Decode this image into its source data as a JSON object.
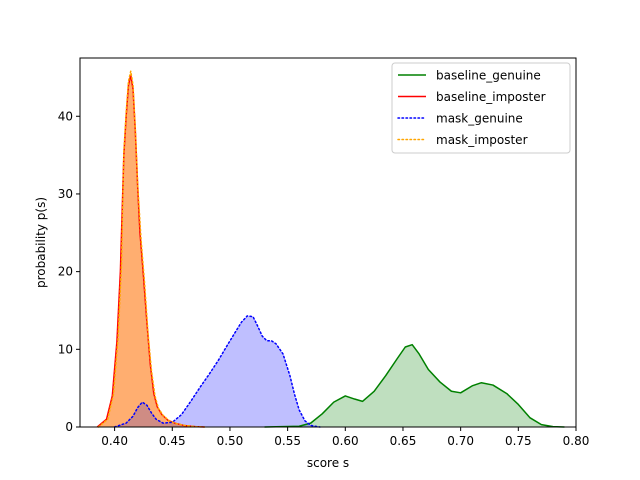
{
  "chart_data": {
    "type": "area",
    "xlabel": "score s",
    "ylabel": "probability p(s)",
    "xlim": [
      0.37,
      0.8
    ],
    "ylim": [
      0,
      47.5
    ],
    "x_ticks": [
      0.4,
      0.45,
      0.5,
      0.55,
      0.6,
      0.65,
      0.7,
      0.75,
      0.8
    ],
    "x_tick_labels": [
      "0.40",
      "0.45",
      "0.50",
      "0.55",
      "0.60",
      "0.65",
      "0.70",
      "0.75",
      "0.80"
    ],
    "y_ticks": [
      0,
      10,
      20,
      30,
      40
    ],
    "y_tick_labels": [
      "0",
      "10",
      "20",
      "30",
      "40"
    ],
    "grid": false,
    "legend_placement": "top-right",
    "series": [
      {
        "name": "baseline_genuine",
        "color": "#008000",
        "fill": "#008000",
        "fill_opacity": 0.25,
        "style": "solid",
        "x": [
          0.53,
          0.56,
          0.57,
          0.58,
          0.59,
          0.6,
          0.608,
          0.615,
          0.625,
          0.635,
          0.645,
          0.652,
          0.658,
          0.664,
          0.672,
          0.682,
          0.692,
          0.7,
          0.71,
          0.718,
          0.728,
          0.74,
          0.75,
          0.76,
          0.77,
          0.78,
          0.79
        ],
        "y": [
          0.0,
          0.1,
          0.5,
          1.7,
          3.2,
          4.0,
          3.6,
          3.3,
          4.6,
          6.6,
          8.8,
          10.3,
          10.6,
          9.4,
          7.4,
          5.8,
          4.6,
          4.4,
          5.3,
          5.7,
          5.4,
          4.3,
          2.9,
          1.2,
          0.3,
          0.05,
          0.0
        ]
      },
      {
        "name": "baseline_imposter",
        "color": "#ff0000",
        "fill": "#ff7f50",
        "fill_opacity": 0.6,
        "style": "solid",
        "x": [
          0.385,
          0.393,
          0.398,
          0.402,
          0.405,
          0.408,
          0.41,
          0.412,
          0.414,
          0.416,
          0.418,
          0.42,
          0.422,
          0.425,
          0.428,
          0.431,
          0.434,
          0.437,
          0.441,
          0.446,
          0.452,
          0.46,
          0.47,
          0.478
        ],
        "y": [
          0.0,
          1.0,
          4.0,
          11.0,
          20.0,
          35.0,
          40.0,
          44.0,
          45.3,
          43.5,
          38.0,
          31.0,
          25.0,
          19.5,
          13.5,
          8.0,
          4.3,
          2.6,
          1.6,
          0.9,
          0.5,
          0.2,
          0.05,
          0.0
        ]
      },
      {
        "name": "mask_genuine",
        "color": "#0000ff",
        "fill": "#0000ff",
        "fill_opacity": 0.25,
        "style": "dotted",
        "x": [
          0.4,
          0.41,
          0.416,
          0.42,
          0.424,
          0.428,
          0.432,
          0.436,
          0.442,
          0.45,
          0.458,
          0.466,
          0.474,
          0.482,
          0.49,
          0.498,
          0.505,
          0.51,
          0.515,
          0.52,
          0.524,
          0.528,
          0.532,
          0.536,
          0.54,
          0.546,
          0.552,
          0.556,
          0.56,
          0.565,
          0.57,
          0.578
        ],
        "y": [
          0.0,
          0.5,
          1.4,
          2.5,
          3.2,
          2.8,
          1.8,
          1.0,
          0.5,
          0.6,
          1.6,
          3.3,
          5.1,
          6.8,
          8.6,
          10.6,
          12.3,
          13.5,
          14.3,
          14.2,
          13.0,
          11.7,
          11.1,
          11.1,
          10.7,
          9.4,
          6.6,
          4.2,
          2.2,
          0.8,
          0.2,
          0.0
        ]
      },
      {
        "name": "mask_imposter",
        "color": "#ffa500",
        "fill": "#ffa500",
        "fill_opacity": 0.25,
        "style": "dotted",
        "x": [
          0.386,
          0.394,
          0.399,
          0.403,
          0.406,
          0.408,
          0.41,
          0.412,
          0.414,
          0.416,
          0.418,
          0.42,
          0.423,
          0.426,
          0.429,
          0.432,
          0.435,
          0.438,
          0.442,
          0.447,
          0.453,
          0.461,
          0.47,
          0.478
        ],
        "y": [
          0.0,
          1.0,
          4.2,
          11.5,
          21.0,
          35.5,
          40.5,
          44.5,
          45.8,
          44.0,
          38.3,
          31.3,
          24.0,
          18.5,
          12.0,
          7.2,
          4.0,
          2.4,
          1.5,
          0.85,
          0.45,
          0.2,
          0.05,
          0.0
        ]
      }
    ]
  }
}
